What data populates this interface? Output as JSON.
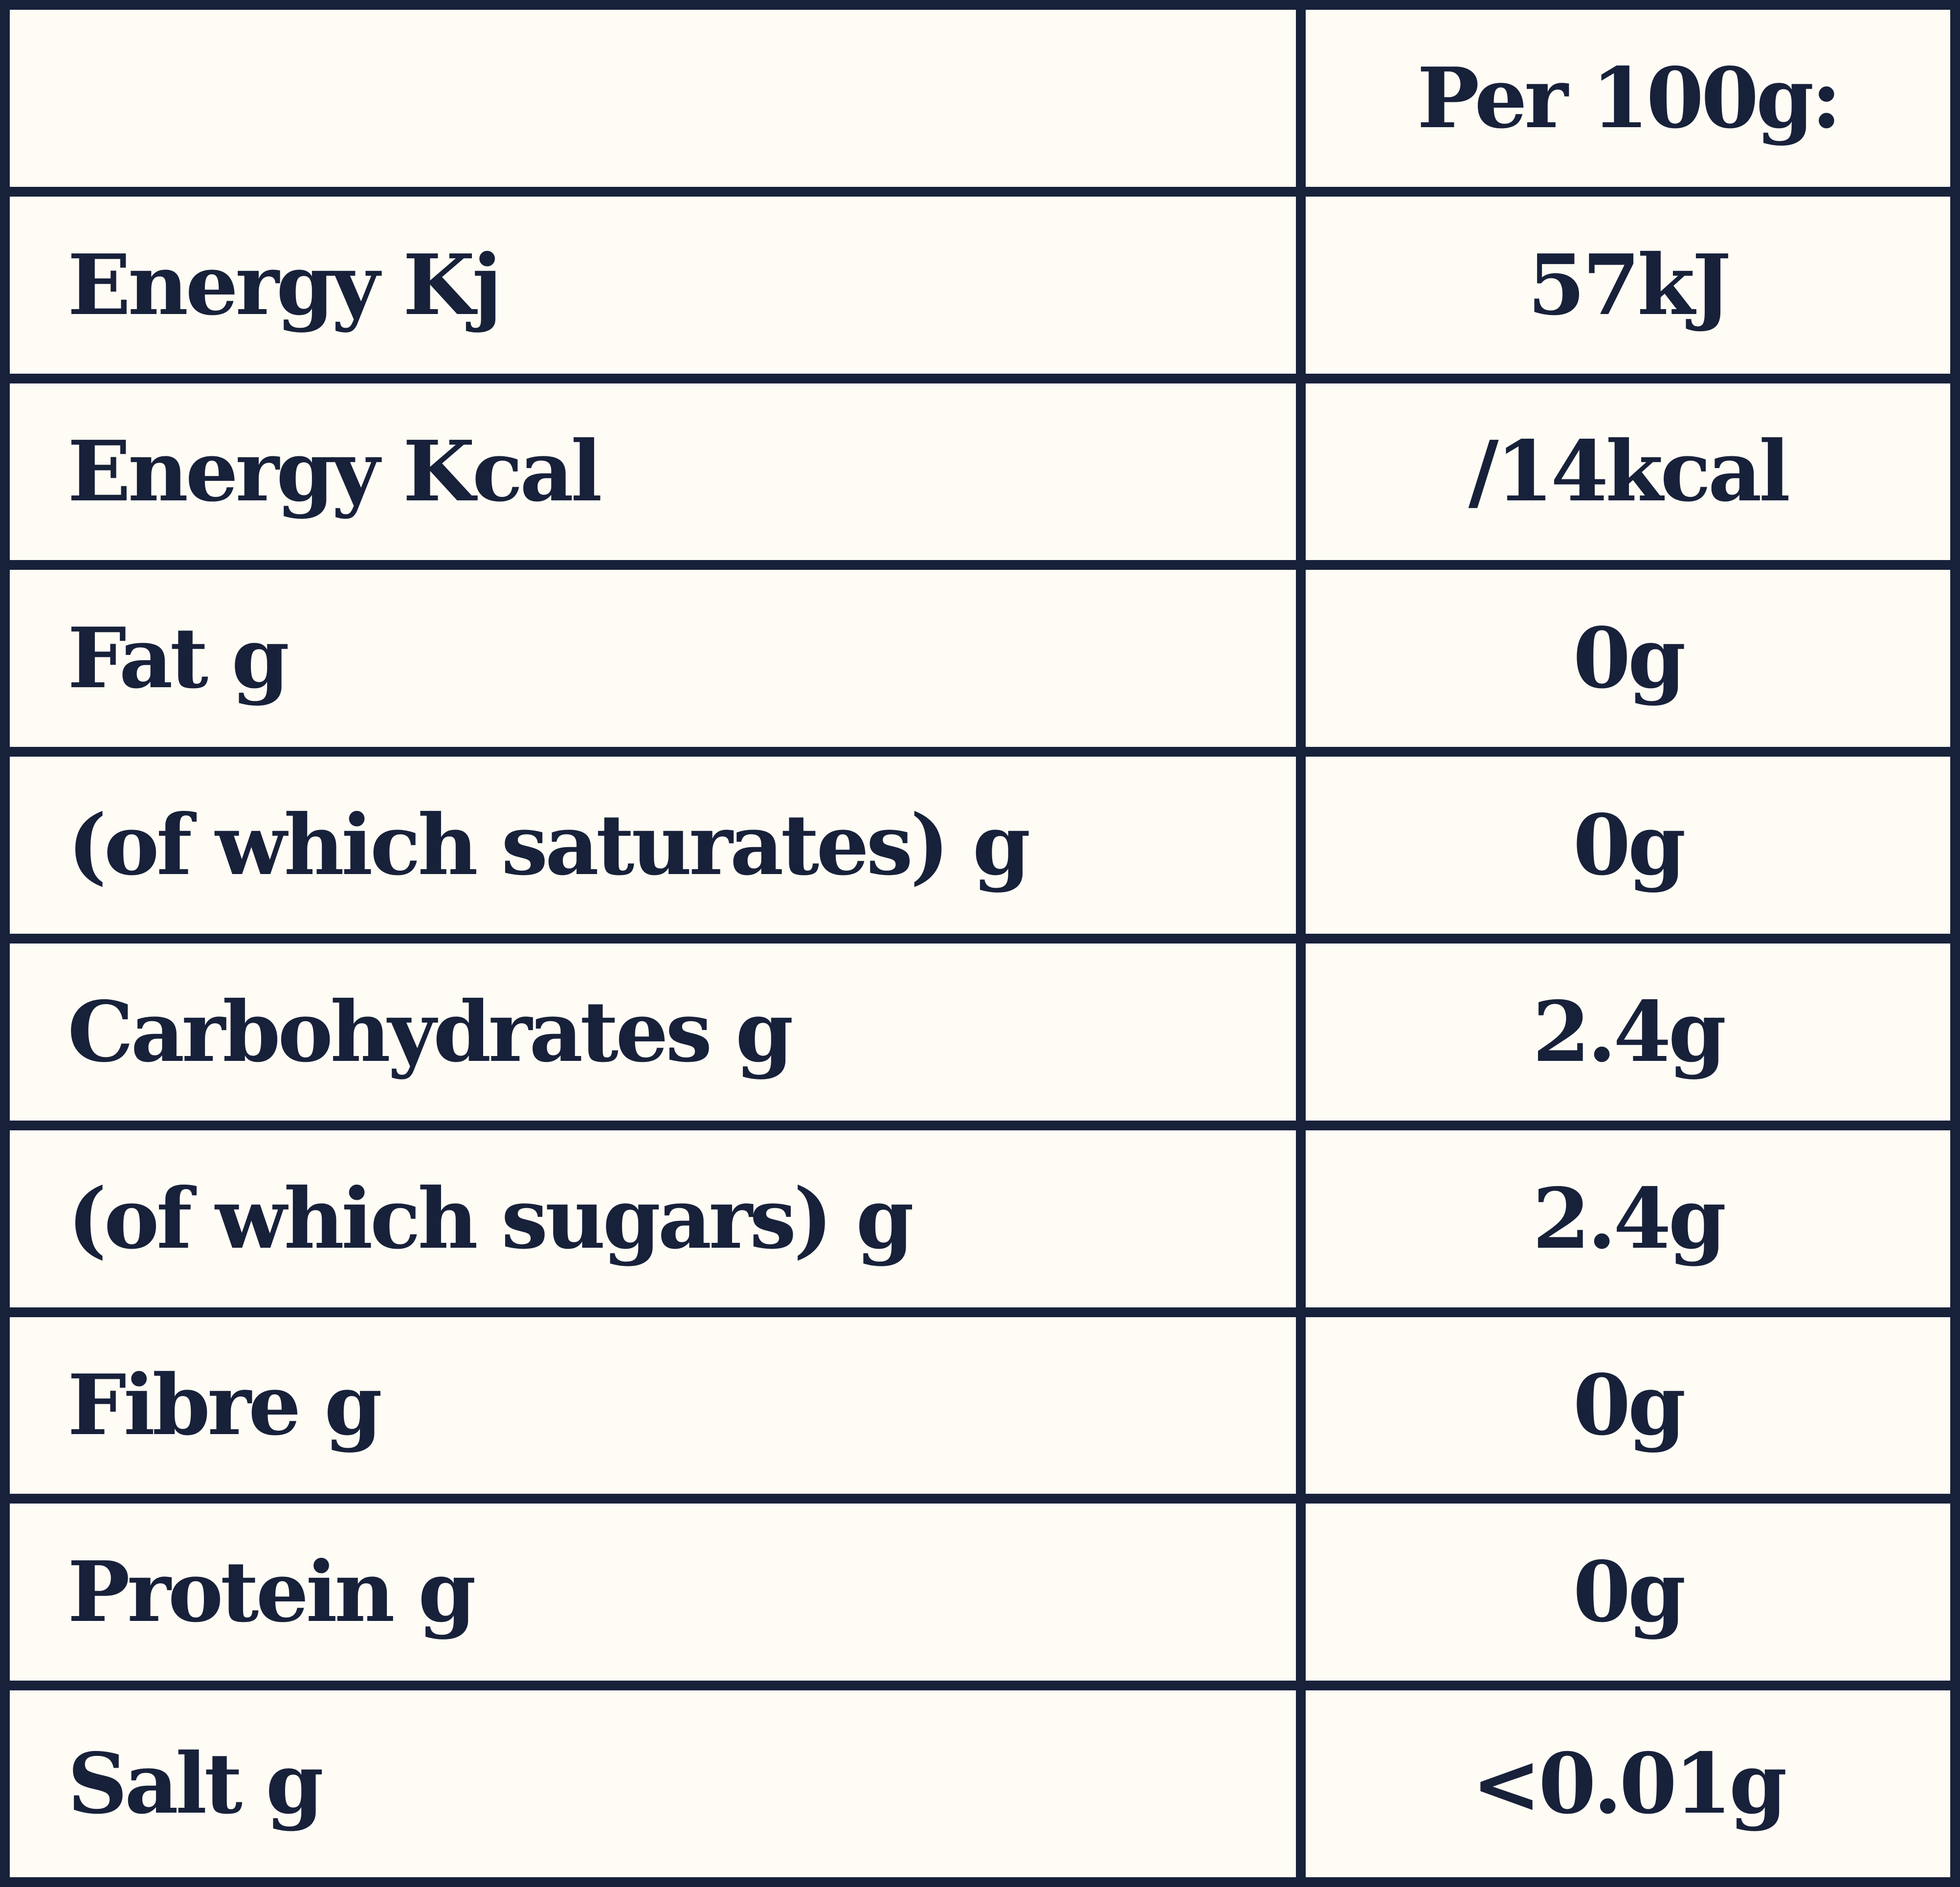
{
  "table": {
    "header": {
      "label": "",
      "value": "Per 100g:"
    },
    "rows": [
      {
        "label": "Energy Kj",
        "value": "57kJ"
      },
      {
        "label": "Energy Kcal",
        "value": "/14kcal"
      },
      {
        "label": "Fat g",
        "value": "0g"
      },
      {
        "label": "(of which saturates) g",
        "value": "0g"
      },
      {
        "label": "Carbohydrates g",
        "value": "2.4g"
      },
      {
        "label": "(of which sugars) g",
        "value": "2.4g"
      },
      {
        "label": "Fibre g",
        "value": "0g"
      },
      {
        "label": "Protein g",
        "value": "0g"
      },
      {
        "label": "Salt g",
        "value": "<0.01g"
      }
    ]
  },
  "colors": {
    "background": "#fefcf4",
    "ink": "#18213a"
  }
}
